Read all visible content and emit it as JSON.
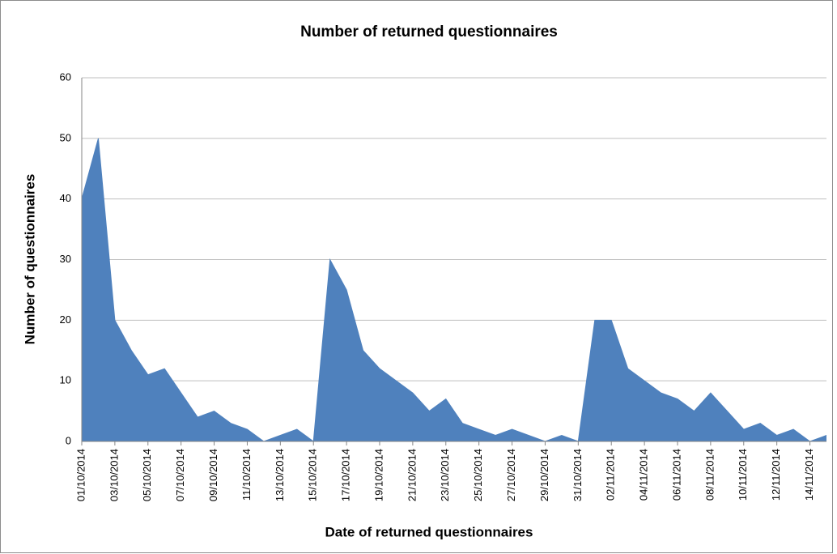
{
  "chart_data": {
    "type": "area",
    "title": "Number of returned questionnaires",
    "x_label": "Date of returned questionnaires",
    "y_label": "Number of questionnaires",
    "categories": [
      "01/10/2014",
      null,
      "03/10/2014",
      null,
      "05/10/2014",
      null,
      "07/10/2014",
      null,
      "09/10/2014",
      null,
      "11/10/2014",
      null,
      "13/10/2014",
      null,
      "15/10/2014",
      null,
      "17/10/2014",
      null,
      "19/10/2014",
      null,
      "21/10/2014",
      null,
      "23/10/2014",
      null,
      "25/10/2014",
      null,
      "27/10/2014",
      null,
      "29/10/2014",
      null,
      "31/10/2014",
      null,
      "02/11/2014",
      null,
      "04/11/2014",
      null,
      "06/11/2014",
      null,
      "08/11/2014",
      null,
      "10/11/2014",
      null,
      "12/11/2014",
      null,
      "14/11/2014",
      null
    ],
    "values": [
      40,
      50,
      20,
      15,
      11,
      12,
      8,
      4,
      5,
      3,
      2,
      0,
      1,
      2,
      0,
      30,
      25,
      15,
      12,
      10,
      8,
      5,
      7,
      3,
      2,
      1,
      2,
      1,
      0,
      1,
      0,
      20,
      20,
      12,
      10,
      8,
      7,
      5,
      8,
      5,
      2,
      3,
      1,
      2,
      0,
      1
    ],
    "color": "#4f81bd",
    "ylim": [
      0,
      60
    ],
    "yticks": [
      0,
      10,
      20,
      30,
      40,
      50,
      60
    ],
    "grid": true
  }
}
